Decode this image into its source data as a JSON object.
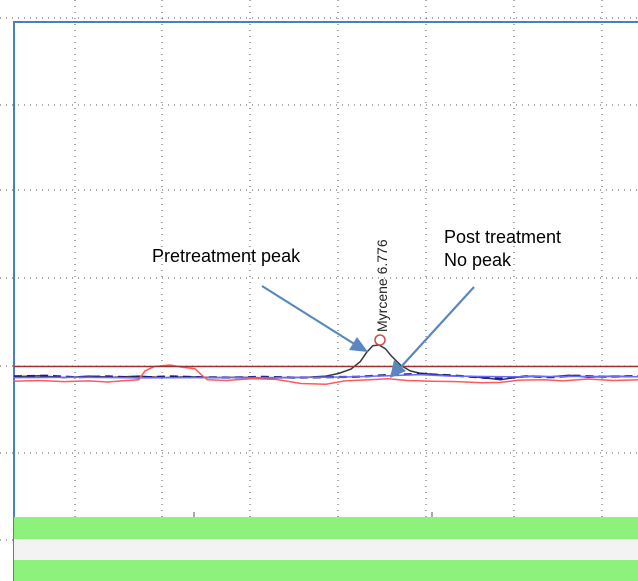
{
  "chart_data": {
    "type": "line",
    "title": "",
    "xlabel": "",
    "ylabel": "",
    "grid": true,
    "peak": {
      "compound": "Myrcene",
      "retention_time": "6.776",
      "label": "Myrcene 6.776"
    },
    "annotations": {
      "pretreatment": "Pretreatment peak",
      "post_line1": "Post treatment",
      "post_line2": "No peak"
    },
    "series": [
      {
        "color": "#3a3a3a",
        "dash": "none",
        "values": [
          [
            0.0,
            1.4
          ],
          [
            0.04,
            1.7
          ],
          [
            0.08,
            1.2
          ],
          [
            0.12,
            1.6
          ],
          [
            0.16,
            1.3
          ],
          [
            0.2,
            1.6
          ],
          [
            0.24,
            1.2
          ],
          [
            0.28,
            1.4
          ],
          [
            0.32,
            1.2
          ],
          [
            0.36,
            1.3
          ],
          [
            0.4,
            1.1
          ],
          [
            0.44,
            1.2
          ],
          [
            0.47,
            1.3
          ],
          [
            0.5,
            1.6
          ],
          [
            0.52,
            2.3
          ],
          [
            0.54,
            3.5
          ],
          [
            0.555,
            5.5
          ],
          [
            0.565,
            8.0
          ],
          [
            0.575,
            9.8
          ],
          [
            0.585,
            10.0
          ],
          [
            0.595,
            9.0
          ],
          [
            0.605,
            7.0
          ],
          [
            0.62,
            4.5
          ],
          [
            0.635,
            3.0
          ],
          [
            0.65,
            2.4
          ],
          [
            0.67,
            2.1
          ],
          [
            0.7,
            1.7
          ],
          [
            0.73,
            1.5
          ],
          [
            0.76,
            1.0
          ],
          [
            0.78,
            0.6
          ],
          [
            0.8,
            1.2
          ],
          [
            0.83,
            1.6
          ],
          [
            0.86,
            1.4
          ],
          [
            0.89,
            1.8
          ],
          [
            0.92,
            1.3
          ],
          [
            0.96,
            1.6
          ],
          [
            1.0,
            1.4
          ]
        ]
      },
      {
        "color": "#1a1a8a",
        "dash": "8,5",
        "values": [
          [
            0.0,
            1.5
          ],
          [
            0.05,
            1.7
          ],
          [
            0.1,
            1.3
          ],
          [
            0.15,
            1.5
          ],
          [
            0.2,
            1.2
          ],
          [
            0.25,
            1.5
          ],
          [
            0.3,
            1.3
          ],
          [
            0.35,
            1.2
          ],
          [
            0.4,
            1.4
          ],
          [
            0.45,
            1.2
          ],
          [
            0.5,
            1.3
          ],
          [
            0.55,
            1.4
          ],
          [
            0.6,
            1.9
          ],
          [
            0.65,
            2.2
          ],
          [
            0.7,
            1.8
          ],
          [
            0.75,
            1.2
          ],
          [
            0.78,
            0.9
          ],
          [
            0.82,
            1.5
          ],
          [
            0.86,
            1.3
          ],
          [
            0.9,
            1.7
          ],
          [
            0.95,
            1.4
          ],
          [
            1.0,
            1.6
          ]
        ]
      },
      {
        "color": "#6a6aff",
        "dash": "none",
        "values": [
          [
            0.0,
            1.2
          ],
          [
            0.1,
            1.3
          ],
          [
            0.2,
            1.1
          ],
          [
            0.3,
            1.2
          ],
          [
            0.4,
            1.2
          ],
          [
            0.5,
            1.3
          ],
          [
            0.55,
            1.4
          ],
          [
            0.6,
            1.7
          ],
          [
            0.65,
            2.0
          ],
          [
            0.7,
            1.6
          ],
          [
            0.8,
            1.4
          ],
          [
            0.9,
            1.5
          ],
          [
            1.0,
            1.4
          ]
        ]
      },
      {
        "color": "#ff5a5a",
        "dash": "none",
        "values": [
          [
            0.0,
            0.2
          ],
          [
            0.04,
            0.4
          ],
          [
            0.08,
            0.1
          ],
          [
            0.12,
            0.3
          ],
          [
            0.15,
            0.0
          ],
          [
            0.18,
            0.4
          ],
          [
            0.2,
            0.6
          ],
          [
            0.21,
            3.0
          ],
          [
            0.225,
            4.2
          ],
          [
            0.25,
            4.6
          ],
          [
            0.27,
            4.0
          ],
          [
            0.29,
            3.6
          ],
          [
            0.3,
            2.0
          ],
          [
            0.31,
            0.6
          ],
          [
            0.34,
            0.4
          ],
          [
            0.38,
            0.9
          ],
          [
            0.42,
            0.7
          ],
          [
            0.46,
            -0.4
          ],
          [
            0.5,
            -0.6
          ],
          [
            0.53,
            0.3
          ],
          [
            0.57,
            0.6
          ],
          [
            0.6,
            0.9
          ],
          [
            0.63,
            0.4
          ],
          [
            0.67,
            0.2
          ],
          [
            0.71,
            0.1
          ],
          [
            0.75,
            -0.2
          ],
          [
            0.78,
            -0.1
          ],
          [
            0.81,
            0.5
          ],
          [
            0.85,
            0.6
          ],
          [
            0.88,
            0.3
          ],
          [
            0.92,
            0.8
          ],
          [
            0.96,
            0.4
          ],
          [
            1.0,
            0.6
          ]
        ]
      },
      {
        "color": "#9a3030",
        "dash": "none",
        "values": [
          [
            0.0,
            4.2
          ],
          [
            1.0,
            4.2
          ]
        ]
      }
    ]
  }
}
